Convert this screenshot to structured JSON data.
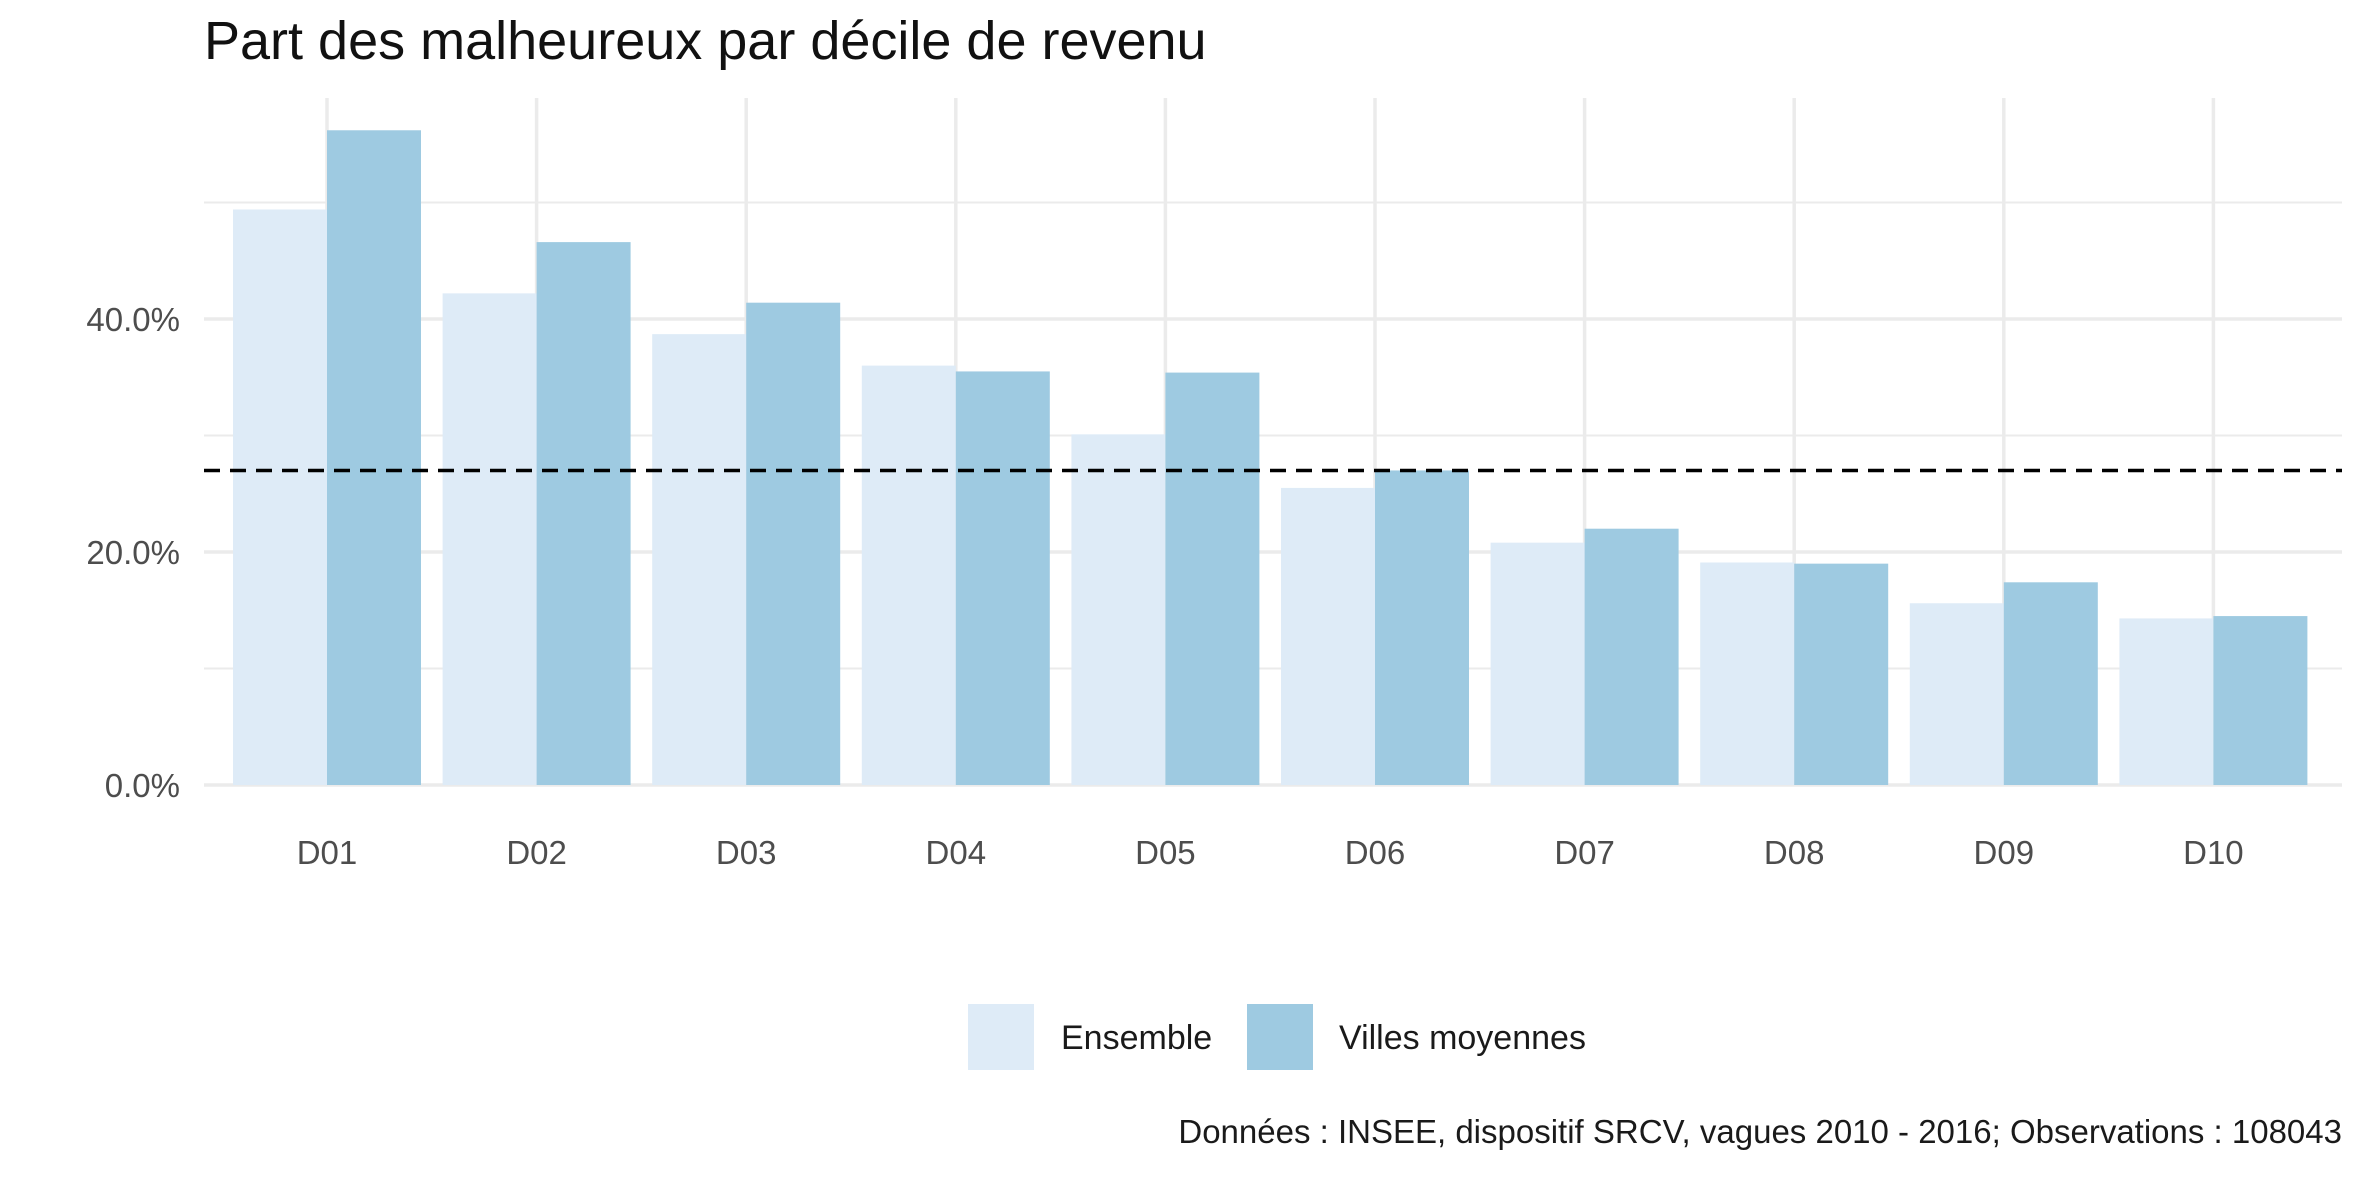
{
  "chart_data": {
    "type": "bar",
    "title": "Part des malheureux par décile de revenu",
    "xlabel": "",
    "ylabel": "",
    "categories": [
      "D01",
      "D02",
      "D03",
      "D04",
      "D05",
      "D06",
      "D07",
      "D08",
      "D09",
      "D10"
    ],
    "series": [
      {
        "name": "Ensemble",
        "color": "#deebf7",
        "values": [
          49.4,
          42.2,
          38.7,
          36.0,
          30.1,
          25.5,
          20.8,
          19.1,
          15.6,
          14.3
        ]
      },
      {
        "name": "Villes moyennes",
        "color": "#9ecae1",
        "values": [
          56.2,
          46.6,
          41.4,
          35.5,
          35.4,
          27.0,
          22.0,
          19.0,
          17.4,
          14.5
        ]
      }
    ],
    "reference_line": {
      "value": 27.0,
      "style": "dashed",
      "color": "#000000"
    },
    "ylim": [
      0,
      59
    ],
    "y_ticks": [
      {
        "value": 0,
        "label": "0.0%"
      },
      {
        "value": 20,
        "label": "20.0%"
      },
      {
        "value": 40,
        "label": "40.0%"
      }
    ],
    "y_minor_gridlines": [
      10,
      30,
      50
    ],
    "grid": true,
    "legend_position": "bottom",
    "caption": "Données : INSEE, dispositif SRCV, vagues 2010 - 2016; Observations : 108043"
  }
}
